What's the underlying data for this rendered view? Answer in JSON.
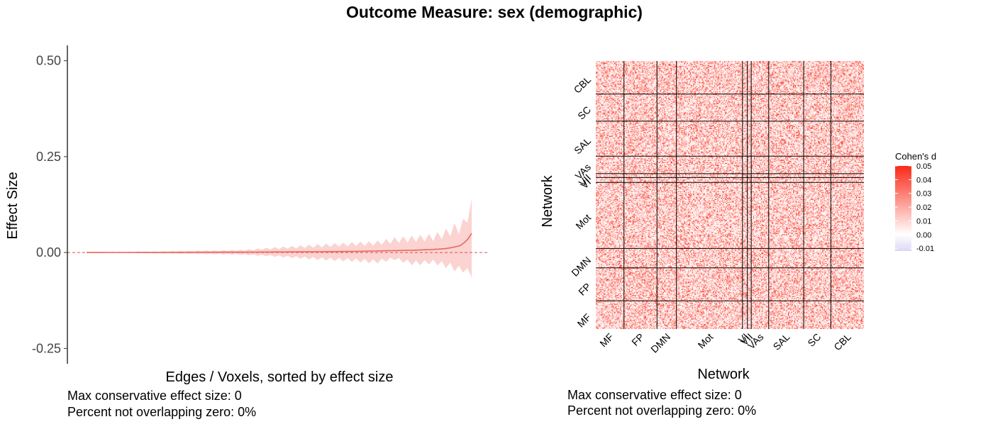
{
  "page": {
    "title": "Outcome Measure: sex (demographic)"
  },
  "colors": {
    "accent_line": "#e8675f",
    "ribbon": "#f8b5b0",
    "zero_line": "#e05050",
    "heat_high": "#fa2a18",
    "heat_mid": "#ffffff",
    "heat_low": "#ddd6f5",
    "grid_line": "#000000"
  },
  "left_panel": {
    "stats": [
      "Max conservative effect size: 0",
      "Percent not overlapping zero: 0%"
    ]
  },
  "right_panel": {
    "stats": [
      "Max conservative effect size: 0",
      "Percent not overlapping zero: 0%"
    ]
  },
  "chart_data": [
    {
      "type": "area",
      "title": "",
      "xlabel": "Edges / Voxels, sorted by effect size",
      "ylabel": "Effect Size",
      "ylim": [
        -0.29,
        0.54
      ],
      "yticks": [
        0.5,
        0.25,
        0.0,
        -0.25
      ],
      "ytick_labels": [
        "0.50",
        "0.25",
        "0.00",
        "-0.25"
      ],
      "xlim": [
        0,
        1
      ],
      "reference_line": 0,
      "grid": false,
      "series": [
        {
          "x": [
            0.0,
            0.2,
            0.4,
            0.5,
            0.6,
            0.7,
            0.75,
            0.8,
            0.85,
            0.9,
            0.93,
            0.95,
            0.97,
            0.98,
            0.99,
            1.0
          ],
          "y": [
            0.0,
            0.0005,
            0.001,
            0.0015,
            0.002,
            0.003,
            0.004,
            0.005,
            0.006,
            0.008,
            0.01,
            0.013,
            0.018,
            0.025,
            0.035,
            0.05
          ],
          "lower": [
            -0.001,
            -0.003,
            -0.006,
            -0.012,
            -0.02,
            -0.025,
            -0.03,
            -0.02,
            -0.035,
            -0.03,
            -0.04,
            -0.045,
            -0.06,
            -0.05,
            -0.07,
            -0.065
          ],
          "upper": [
            0.001,
            0.003,
            0.007,
            0.015,
            0.022,
            0.028,
            0.03,
            0.04,
            0.045,
            0.05,
            0.06,
            0.075,
            0.08,
            0.09,
            0.135,
            0.14
          ]
        }
      ]
    },
    {
      "type": "heatmap",
      "title": "",
      "xlabel": "Network",
      "ylabel": "Network",
      "legend_title": "Cohen's d",
      "legend_placement": "right",
      "color_range": [
        -0.012,
        0.05
      ],
      "legend_ticks": [
        0.05,
        0.04,
        0.03,
        0.02,
        0.01,
        0.0,
        -0.01
      ],
      "legend_tick_labels": [
        "0.05",
        "0.04",
        "0.03",
        "0.02",
        "0.01",
        "0.00",
        "-0.01"
      ],
      "networks": [
        "MF",
        "FP",
        "DMN",
        "Mot",
        "VI",
        "VII",
        "VAs",
        "SAL",
        "SC",
        "CBL"
      ],
      "network_sizes": [
        29,
        34,
        20,
        68,
        5,
        4,
        18,
        36,
        28,
        34
      ],
      "network_mean_effect": [
        0.008,
        0.009,
        0.007,
        0.006,
        0.005,
        0.006,
        0.008,
        0.009,
        0.006,
        0.012
      ]
    }
  ]
}
